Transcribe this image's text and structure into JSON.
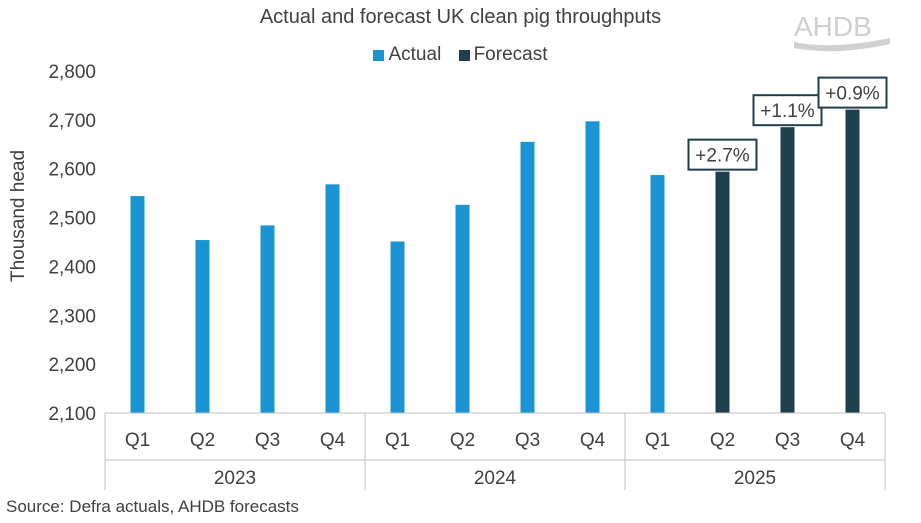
{
  "chart_data": {
    "type": "bar",
    "title": "Actual and forecast UK clean pig throughputs",
    "ylabel": "Thousand head",
    "xlabel": "",
    "ylim": [
      2100,
      2800
    ],
    "yticks": [
      2100,
      2200,
      2300,
      2400,
      2500,
      2600,
      2700,
      2800
    ],
    "ytick_labels": [
      "2,100",
      "2,200",
      "2,300",
      "2,400",
      "2,500",
      "2,600",
      "2,700",
      "2,800"
    ],
    "groups": [
      {
        "label": "2023",
        "quarters": [
          "Q1",
          "Q2",
          "Q3",
          "Q4"
        ]
      },
      {
        "label": "2024",
        "quarters": [
          "Q1",
          "Q2",
          "Q3",
          "Q4"
        ]
      },
      {
        "label": "2025",
        "quarters": [
          "Q1",
          "Q2",
          "Q3",
          "Q4"
        ]
      }
    ],
    "categories": [
      "2023 Q1",
      "2023 Q2",
      "2023 Q3",
      "2023 Q4",
      "2024 Q1",
      "2024 Q2",
      "2024 Q3",
      "2024 Q4",
      "2025 Q1",
      "2025 Q2",
      "2025 Q3",
      "2025 Q4"
    ],
    "series": [
      {
        "name": "Actual",
        "color": "#1a94d2",
        "values": [
          2544,
          2454,
          2484,
          2568,
          2451,
          2526,
          2655,
          2697,
          2587,
          null,
          null,
          null
        ]
      },
      {
        "name": "Forecast",
        "color": "#1f3f4d",
        "values": [
          null,
          null,
          null,
          null,
          null,
          null,
          null,
          null,
          null,
          2594,
          2685,
          2721
        ]
      }
    ],
    "annotations": [
      {
        "category": "2025 Q2",
        "text": "+2.7%"
      },
      {
        "category": "2025 Q3",
        "text": "+1.1%"
      },
      {
        "category": "2025 Q4",
        "text": "+0.9%"
      }
    ],
    "legend_position": "top-center"
  },
  "legend": {
    "actual": "Actual",
    "forecast": "Forecast",
    "actual_color": "#1a94d2",
    "forecast_color": "#1f3f4d"
  },
  "source": "Source: Defra actuals, AHDB forecasts",
  "logo": {
    "text": "AHDB"
  }
}
